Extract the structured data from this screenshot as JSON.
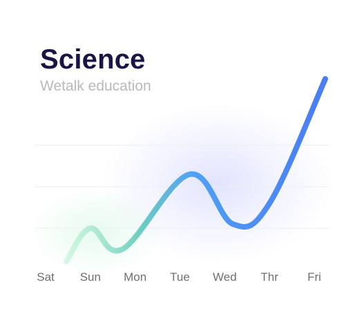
{
  "title": "Science",
  "subtitle": "Wetalk education",
  "chart_data": {
    "type": "line",
    "categories": [
      "Sat",
      "Sun",
      "Mon",
      "Tue",
      "Wed",
      "Thr",
      "Fri"
    ],
    "series": [
      {
        "values": [
          0.2,
          1.0,
          0.5,
          2.3,
          1.1,
          1.6,
          4.6
        ]
      }
    ],
    "ylim": [
      0,
      5
    ],
    "grid": true,
    "gridlines": [
      1,
      2,
      3
    ],
    "legend": "none",
    "line_gradient": [
      "#a9eec6",
      "#6dcfc0",
      "#4f9ff5",
      "#4a7cf3"
    ]
  }
}
